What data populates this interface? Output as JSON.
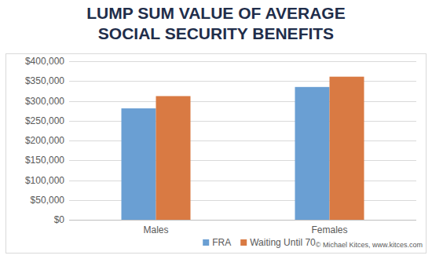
{
  "chart_data": {
    "type": "bar",
    "title": "LUMP SUM VALUE OF AVERAGE SOCIAL SECURITY BENEFITS",
    "categories": [
      "Males",
      "Females"
    ],
    "series": [
      {
        "name": "FRA",
        "color": "#6a9fd3",
        "values": [
          281000,
          335000
        ]
      },
      {
        "name": "Waiting Until 70",
        "color": "#d97a43",
        "values": [
          312000,
          361000
        ]
      }
    ],
    "ylim": [
      0,
      400000
    ],
    "yticks": [
      {
        "value": 0,
        "label": "$0"
      },
      {
        "value": 50000,
        "label": "$50,000"
      },
      {
        "value": 100000,
        "label": "$100,000"
      },
      {
        "value": 150000,
        "label": "$150,000"
      },
      {
        "value": 200000,
        "label": "$200,000"
      },
      {
        "value": 250000,
        "label": "$250,000"
      },
      {
        "value": 300000,
        "label": "$300,000"
      },
      {
        "value": 350000,
        "label": "$350,000"
      },
      {
        "value": 400000,
        "label": "$400,000"
      }
    ],
    "grid": true,
    "legend": "bottom",
    "annotations": [
      "© Michael Kitces, www.kitces.com"
    ]
  }
}
